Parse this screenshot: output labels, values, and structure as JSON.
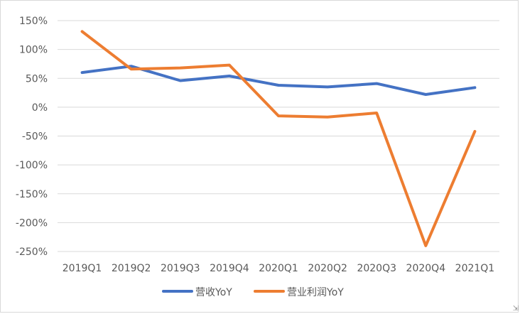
{
  "chart_data": {
    "type": "line",
    "categories": [
      "2019Q1",
      "2019Q2",
      "2019Q3",
      "2019Q4",
      "2020Q1",
      "2020Q2",
      "2020Q3",
      "2020Q4",
      "2021Q1"
    ],
    "series": [
      {
        "name": "营收YoY",
        "color": "#4472C4",
        "values": [
          60,
          71,
          46,
          54,
          38,
          35,
          41,
          22,
          34
        ]
      },
      {
        "name": "营业利润YoY",
        "color": "#ED7D31",
        "values": [
          131,
          66,
          68,
          73,
          -15,
          -17,
          -10,
          -240,
          -42
        ]
      }
    ],
    "y_ticks": [
      "150%",
      "100%",
      "50%",
      "0%",
      "-50%",
      "-100%",
      "-150%",
      "-200%",
      "-250%"
    ],
    "y_tick_values": [
      150,
      100,
      50,
      0,
      -50,
      -100,
      -150,
      -200,
      -250
    ],
    "ylim": [
      -250,
      150
    ],
    "grid": true,
    "legend_position": "bottom",
    "title": "",
    "xlabel": "",
    "ylabel": ""
  }
}
